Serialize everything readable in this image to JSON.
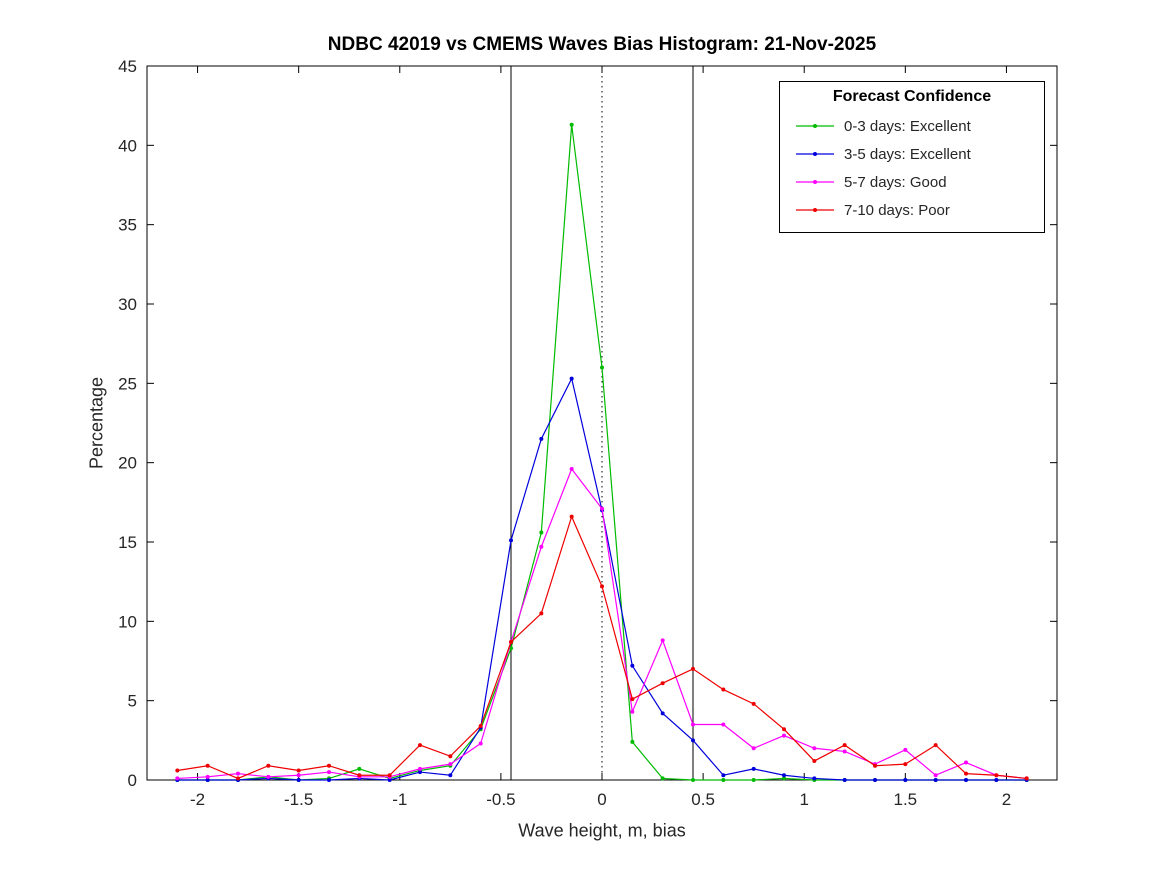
{
  "chart_data": {
    "type": "line",
    "title": "NDBC 42019 vs CMEMS Waves Bias Histogram: 21-Nov-2025",
    "xlabel": "Wave height, m, bias",
    "ylabel": "Percentage",
    "xlim": [
      -2.25,
      2.25
    ],
    "ylim": [
      0,
      45
    ],
    "xticks": [
      -2,
      -1.5,
      -1,
      -0.5,
      0,
      0.5,
      1,
      1.5,
      2
    ],
    "yticks": [
      0,
      5,
      10,
      15,
      20,
      25,
      30,
      35,
      40,
      45
    ],
    "grid": false,
    "reference_lines": [
      {
        "x": -0.45,
        "style": "solid",
        "color": "#000000"
      },
      {
        "x": 0,
        "style": "dotted",
        "color": "#000000"
      },
      {
        "x": 0.45,
        "style": "solid",
        "color": "#000000"
      }
    ],
    "legend": {
      "title": "Forecast Confidence",
      "position": "top-right"
    },
    "x": [
      -2.1,
      -1.95,
      -1.8,
      -1.65,
      -1.5,
      -1.35,
      -1.2,
      -1.05,
      -0.9,
      -0.75,
      -0.6,
      -0.45,
      -0.3,
      -0.15,
      0,
      0.15,
      0.3,
      0.45,
      0.6,
      0.75,
      0.9,
      1.05,
      1.2,
      1.35,
      1.5,
      1.65,
      1.8,
      1.95,
      2.1
    ],
    "series": [
      {
        "name": "0-3 days: Excellent",
        "color": "#00bb00",
        "values": [
          0,
          0,
          0,
          0.2,
          0,
          0.1,
          0.7,
          0.1,
          0.6,
          0.9,
          3.2,
          8.3,
          15.6,
          41.3,
          26.0,
          2.4,
          0.1,
          0,
          0,
          0,
          0.1,
          0,
          0,
          0,
          0,
          0,
          0,
          0,
          0
        ]
      },
      {
        "name": "3-5 days: Excellent",
        "color": "#0000dd",
        "values": [
          0,
          0,
          0,
          0.1,
          0,
          0,
          0.1,
          0,
          0.5,
          0.3,
          3.3,
          15.1,
          21.5,
          25.3,
          17.0,
          7.2,
          4.2,
          2.5,
          0.3,
          0.7,
          0.3,
          0.1,
          0,
          0,
          0,
          0,
          0,
          0,
          0
        ]
      },
      {
        "name": "5-7 days: Good",
        "color": "#ff00ff",
        "values": [
          0.1,
          0.2,
          0.4,
          0.2,
          0.3,
          0.5,
          0.2,
          0.2,
          0.7,
          1.0,
          2.3,
          8.7,
          14.7,
          19.6,
          17.1,
          4.3,
          8.8,
          3.5,
          3.5,
          2.0,
          2.8,
          2.0,
          1.8,
          1.0,
          1.9,
          0.3,
          1.1,
          0.3,
          0.1
        ]
      },
      {
        "name": "7-10 days: Poor",
        "color": "#ee0000",
        "values": [
          0.6,
          0.9,
          0.1,
          0.9,
          0.6,
          0.9,
          0.3,
          0.3,
          2.2,
          1.5,
          3.4,
          8.7,
          10.5,
          16.6,
          12.2,
          5.1,
          6.1,
          7.0,
          5.7,
          4.8,
          3.2,
          1.2,
          2.2,
          0.9,
          1.0,
          2.2,
          0.4,
          0.3,
          0.1
        ]
      }
    ]
  }
}
